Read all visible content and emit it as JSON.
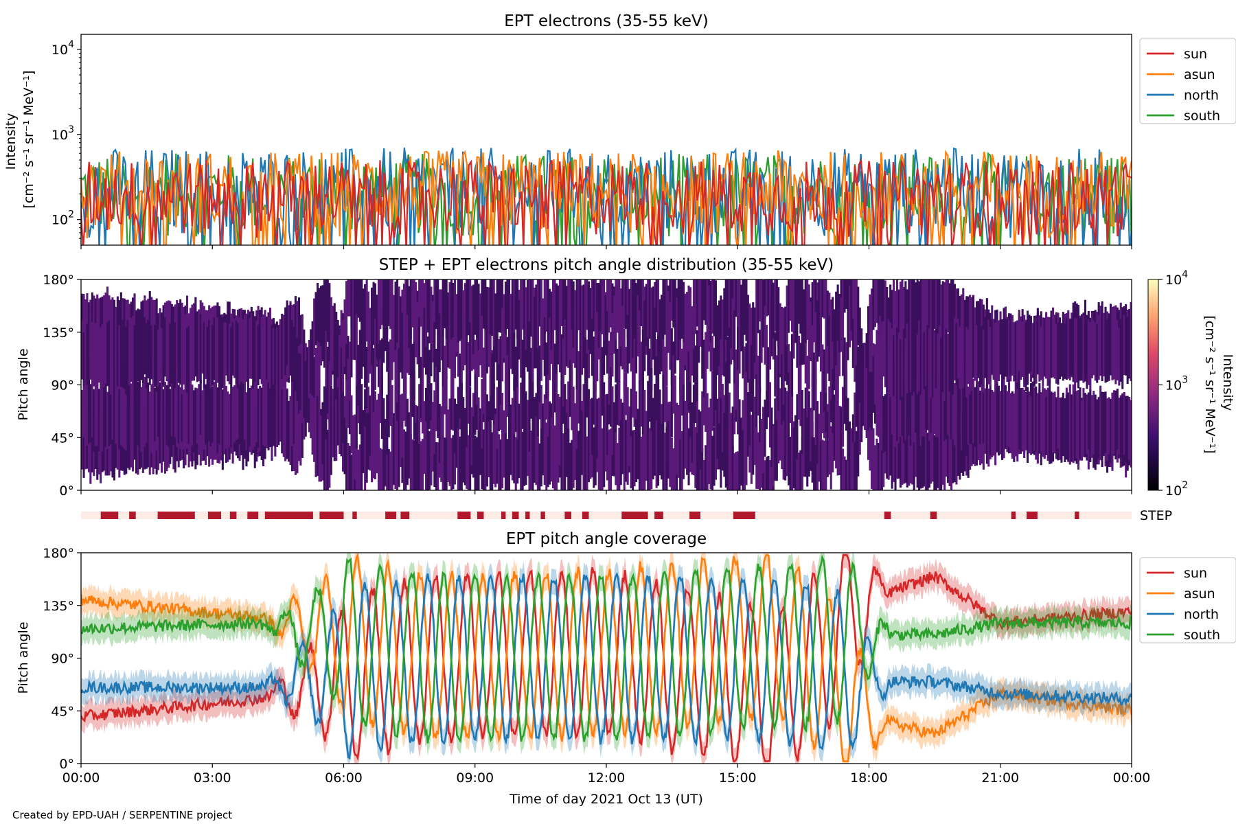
{
  "panels": {
    "intensity": {
      "title": "EPT electrons (35-55 keV)",
      "ylabel_line1": "Intensity",
      "ylabel_line2": "[cm⁻² s⁻¹ sr⁻¹ MeV⁻¹]",
      "y_ticks": [
        {
          "base": "10",
          "exp": "4"
        },
        {
          "base": "10",
          "exp": "3"
        },
        {
          "base": "10",
          "exp": "2"
        }
      ]
    },
    "pad": {
      "title": "STEP + EPT electrons pitch angle distribution (35-55 keV)",
      "ylabel": "Pitch angle",
      "y_ticks": [
        "180°",
        "135°",
        "90°",
        "45°",
        "0°"
      ],
      "colorbar_label_line1": "Intensity",
      "colorbar_label_line2": "[cm⁻² s⁻¹ sr⁻¹ MeV⁻¹]",
      "colorbar_ticks": [
        {
          "base": "10",
          "exp": "4"
        },
        {
          "base": "10",
          "exp": "3"
        },
        {
          "base": "10",
          "exp": "2"
        }
      ]
    },
    "step": {
      "label": "STEP"
    },
    "coverage": {
      "title": "EPT pitch angle coverage",
      "ylabel": "Pitch angle",
      "y_ticks": [
        "180°",
        "135°",
        "90°",
        "45°",
        "0°"
      ]
    }
  },
  "x_axis": {
    "ticks": [
      "00:00",
      "03:00",
      "06:00",
      "09:00",
      "12:00",
      "15:00",
      "18:00",
      "21:00",
      "00:00"
    ],
    "label": "Time of day 2021 Oct 13 (UT)"
  },
  "footer": "Created by EPD-UAH / SERPENTINE project",
  "legend": [
    {
      "name": "sun",
      "color": "#d62728"
    },
    {
      "name": "asun",
      "color": "#ff7f0e"
    },
    {
      "name": "north",
      "color": "#1f77b4"
    },
    {
      "name": "south",
      "color": "#2ca02c"
    }
  ],
  "colors": {
    "step_bar_background": "#fdece6",
    "step_bar_fill": "#b2182b",
    "pad_fill_dark": "#3a0f5c",
    "pad_fill_mid": "#5b1a7a"
  },
  "chart_data": [
    {
      "type": "line",
      "title": "EPT electrons (35-55 keV)",
      "ylabel": "Intensity [cm⁻² s⁻¹ sr⁻¹ MeV⁻¹]",
      "xlabel": "Time of day 2021 Oct 13 (UT)",
      "yscale": "log",
      "ylim": [
        50,
        15000
      ],
      "xlim_hours": [
        0,
        24
      ],
      "series": [
        {
          "name": "sun",
          "typical_range": [
            60,
            500
          ]
        },
        {
          "name": "asun",
          "typical_range": [
            60,
            650
          ]
        },
        {
          "name": "north",
          "typical_range": [
            60,
            700
          ]
        },
        {
          "name": "south",
          "typical_range": [
            60,
            600
          ]
        }
      ],
      "legend_position": "right"
    },
    {
      "type": "heatmap",
      "title": "STEP + EPT electrons pitch angle distribution (35-55 keV)",
      "ylabel": "Pitch angle",
      "ylim": [
        0,
        180
      ],
      "colorbar": {
        "label": "Intensity [cm⁻² s⁻¹ sr⁻¹ MeV⁻¹]",
        "scale": "log",
        "range": [
          100,
          10000
        ]
      },
      "step_coverage_hours": [
        [
          0.45,
          0.85
        ],
        [
          1.1,
          1.25
        ],
        [
          1.75,
          2.6
        ],
        [
          2.9,
          3.2
        ],
        [
          3.4,
          3.55
        ],
        [
          3.8,
          4.05
        ],
        [
          4.2,
          5.3
        ],
        [
          5.45,
          6.0
        ],
        [
          6.2,
          6.3
        ],
        [
          6.95,
          7.2
        ],
        [
          7.3,
          7.5
        ],
        [
          8.6,
          8.9
        ],
        [
          9.05,
          9.2
        ],
        [
          9.6,
          9.7
        ],
        [
          9.85,
          10.0
        ],
        [
          10.15,
          10.25
        ],
        [
          10.5,
          10.6
        ],
        [
          11.05,
          11.2
        ],
        [
          11.45,
          11.6
        ],
        [
          12.35,
          12.95
        ],
        [
          13.1,
          13.3
        ],
        [
          13.9,
          14.15
        ],
        [
          14.9,
          15.4
        ],
        [
          18.35,
          18.5
        ],
        [
          19.4,
          19.55
        ],
        [
          21.25,
          21.35
        ],
        [
          21.6,
          21.85
        ],
        [
          22.7,
          22.8
        ]
      ]
    },
    {
      "type": "line",
      "title": "EPT pitch angle coverage",
      "ylabel": "Pitch angle",
      "xlabel": "Time of day 2021 Oct 13 (UT)",
      "ylim": [
        0,
        180
      ],
      "series": [
        {
          "name": "sun",
          "description_points": [
            [
              0,
              40
            ],
            [
              4,
              55
            ],
            [
              8,
              90
            ],
            [
              12,
              95
            ],
            [
              16,
              60
            ],
            [
              18,
              140
            ],
            [
              19.5,
              160
            ],
            [
              21,
              120
            ],
            [
              24,
              130
            ]
          ]
        },
        {
          "name": "asun",
          "description_points": [
            [
              0,
              140
            ],
            [
              4,
              125
            ],
            [
              8,
              90
            ],
            [
              12,
              95
            ],
            [
              16,
              110
            ],
            [
              18,
              40
            ],
            [
              19.5,
              25
            ],
            [
              21,
              60
            ],
            [
              24,
              45
            ]
          ]
        },
        {
          "name": "north",
          "description_points": [
            [
              0,
              65
            ],
            [
              4,
              65
            ],
            [
              8,
              90
            ],
            [
              12,
              90
            ],
            [
              16,
              90
            ],
            [
              18,
              70
            ],
            [
              19.5,
              70
            ],
            [
              21,
              60
            ],
            [
              24,
              55
            ]
          ]
        },
        {
          "name": "south",
          "description_points": [
            [
              0,
              115
            ],
            [
              4,
              120
            ],
            [
              8,
              90
            ],
            [
              12,
              90
            ],
            [
              16,
              100
            ],
            [
              18,
              110
            ],
            [
              19.5,
              110
            ],
            [
              21,
              120
            ],
            [
              24,
              120
            ]
          ]
        }
      ],
      "legend_position": "right"
    }
  ]
}
